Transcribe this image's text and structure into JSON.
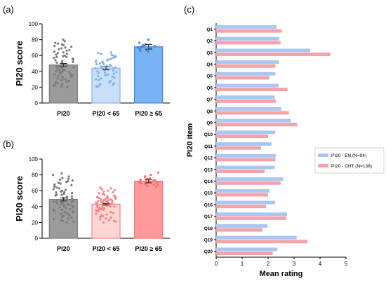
{
  "chart_data": [
    {
      "panel": "(a)",
      "type": "bar",
      "ylabel": "PI20 score",
      "ylim": [
        0,
        100
      ],
      "yticks": [
        "0",
        "20",
        "40",
        "60",
        "80",
        "100"
      ],
      "categories": [
        "PI20",
        "PI20 < 65",
        "PI20 ≥ 65"
      ],
      "values": [
        48,
        44,
        71
      ],
      "errors": [
        2,
        2,
        3
      ],
      "colors": [
        "#9b9b9b",
        "#c9dff7",
        "#77b3f5"
      ],
      "dot_colors": [
        "#7a7a7a",
        "#7fb3ec",
        "#3f86e0"
      ],
      "points": [
        [
          80,
          78,
          76,
          75,
          74,
          73,
          72,
          71,
          70,
          69,
          68,
          67,
          66,
          65,
          64,
          63,
          62,
          61,
          60,
          59,
          58,
          57,
          56,
          55,
          54,
          53,
          52,
          51,
          50,
          49,
          48,
          47,
          46,
          45,
          44,
          43,
          42,
          41,
          40,
          39,
          38,
          37,
          36,
          35,
          34,
          33,
          32,
          31,
          30,
          29,
          28,
          27,
          26,
          25,
          24,
          23,
          22,
          21,
          20,
          58,
          52,
          47,
          44,
          41,
          39,
          36,
          33,
          50,
          46,
          43
        ],
        [
          64,
          63,
          62,
          61,
          60,
          59,
          58,
          57,
          56,
          55,
          54,
          53,
          52,
          51,
          50,
          49,
          48,
          47,
          46,
          45,
          44,
          43,
          42,
          41,
          40,
          39,
          38,
          37,
          36,
          35,
          34,
          33,
          32,
          31,
          30,
          29,
          28,
          27,
          26,
          25,
          24,
          23,
          22,
          21,
          20,
          52,
          47,
          44,
          41,
          38,
          35,
          49,
          45
        ],
        [
          80,
          76,
          74,
          73,
          72,
          72,
          71,
          70,
          70,
          69,
          68,
          67,
          66,
          65
        ]
      ]
    },
    {
      "panel": "(b)",
      "type": "bar",
      "ylabel": "PI20 score",
      "ylim": [
        0,
        100
      ],
      "yticks": [
        "0",
        "20",
        "40",
        "60",
        "80",
        "100"
      ],
      "categories": [
        "PI20",
        "PI20 < 65",
        "PI20 ≥ 65"
      ],
      "values": [
        49,
        43,
        72
      ],
      "errors": [
        2,
        1,
        2
      ],
      "colors": [
        "#9b9b9b",
        "#ffd6d6",
        "#ff9a9a"
      ],
      "dot_colors": [
        "#7a7a7a",
        "#ff7f7f",
        "#ff6f6f"
      ],
      "points": [
        [
          82,
          80,
          78,
          76,
          75,
          74,
          73,
          72,
          71,
          70,
          69,
          68,
          67,
          66,
          65,
          64,
          63,
          62,
          61,
          60,
          59,
          58,
          57,
          56,
          55,
          54,
          53,
          52,
          51,
          50,
          49,
          48,
          47,
          46,
          45,
          44,
          43,
          42,
          41,
          40,
          39,
          38,
          37,
          36,
          35,
          34,
          33,
          32,
          31,
          30,
          29,
          28,
          27,
          26,
          25,
          24,
          23,
          22,
          21,
          20,
          58,
          52,
          47,
          44,
          41,
          39,
          36,
          33,
          50,
          46,
          43,
          55,
          48
        ],
        [
          64,
          63,
          62,
          61,
          60,
          59,
          58,
          57,
          56,
          55,
          54,
          53,
          52,
          51,
          50,
          49,
          48,
          47,
          46,
          45,
          44,
          43,
          42,
          41,
          40,
          39,
          38,
          37,
          36,
          35,
          34,
          33,
          32,
          31,
          30,
          29,
          28,
          27,
          26,
          25,
          24,
          23,
          22,
          21,
          20,
          52,
          47,
          44,
          41,
          38,
          35,
          49,
          45,
          50,
          46,
          42,
          39,
          36,
          53,
          48,
          44,
          40,
          37,
          51,
          47,
          43
        ],
        [
          83,
          80,
          78,
          77,
          76,
          75,
          74,
          74,
          73,
          73,
          72,
          72,
          71,
          71,
          70,
          70,
          69,
          69,
          68,
          67,
          66,
          65,
          75,
          72,
          70,
          68
        ]
      ]
    },
    {
      "panel": "(c)",
      "type": "bar",
      "orientation": "horizontal",
      "xlabel": "Mean rating",
      "ylabel": "PI20 item",
      "xlim": [
        0,
        5
      ],
      "xticks": [
        "0",
        "1",
        "2",
        "3",
        "4",
        "5"
      ],
      "categories": [
        "Q1",
        "Q2",
        "Q3",
        "Q4",
        "Q5",
        "Q6",
        "Q7",
        "Q8",
        "Q9",
        "Q10",
        "Q11",
        "Q12",
        "Q13",
        "Q14",
        "Q15",
        "Q16",
        "Q17",
        "Q18",
        "Q19",
        "Q20"
      ],
      "series": [
        {
          "name": "PI20 - EN    (N=94)",
          "color": "#a9c7f2",
          "values": [
            2.33,
            2.43,
            3.62,
            2.42,
            2.28,
            2.4,
            2.25,
            2.5,
            2.88,
            2.27,
            2.13,
            2.3,
            2.25,
            2.58,
            2.05,
            2.27,
            2.73,
            1.98,
            3.1,
            2.35
          ]
        },
        {
          "name": "PI20 - CHT (N=138)",
          "color": "#f4a3a8",
          "values": [
            2.53,
            2.48,
            4.4,
            2.28,
            2.05,
            2.75,
            2.3,
            2.8,
            3.12,
            2.0,
            1.73,
            2.28,
            1.87,
            2.48,
            2.0,
            1.92,
            2.7,
            1.78,
            3.52,
            2.18
          ]
        }
      ],
      "legend_position": "right"
    }
  ],
  "labels": {
    "panel_a": "(a)",
    "panel_b": "(b)",
    "panel_c": "(c)",
    "a_ylabel": "PI20 score",
    "b_ylabel": "PI20 score",
    "c_xlabel": "Mean rating",
    "c_ylabel": "PI20 item",
    "legend_en": "PI20 - EN    (N=94)",
    "legend_cht": "PI20 - CHT (N=138)"
  }
}
